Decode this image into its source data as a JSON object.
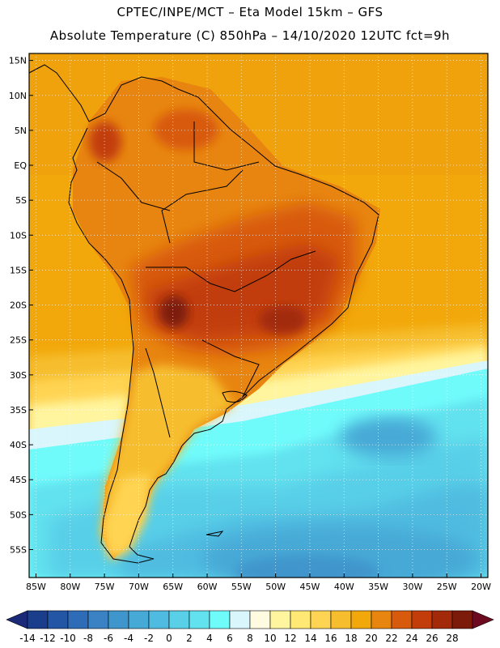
{
  "header": {
    "line1": "CPTEC/INPE/MCT –  Eta Model 15km – GFS",
    "line2": "Absolute Temperature (C) 850hPa – 14/10/2020 12UTC fct=9h"
  },
  "map": {
    "lat_labels": [
      "15N",
      "10N",
      "5N",
      "EQ",
      "5S",
      "10S",
      "15S",
      "20S",
      "25S",
      "30S",
      "35S",
      "40S",
      "45S",
      "50S",
      "55S"
    ],
    "lon_labels": [
      "85W",
      "80W",
      "75W",
      "70W",
      "65W",
      "60W",
      "55W",
      "50W",
      "45W",
      "40W",
      "35W",
      "30W",
      "25W",
      "20W"
    ],
    "lon_range": [
      -86,
      -19
    ],
    "lat_range": [
      -59,
      16
    ]
  },
  "colorbar": {
    "labels": [
      "-14",
      "-12",
      "-10",
      "-8",
      "-6",
      "-4",
      "-2",
      "0",
      "2",
      "4",
      "6",
      "8",
      "10",
      "12",
      "14",
      "16",
      "18",
      "20",
      "22",
      "24",
      "26",
      "28"
    ],
    "colors": [
      "#1a3d8c",
      "#2456a6",
      "#2e6cb8",
      "#3a82c4",
      "#3f96cc",
      "#46a9d6",
      "#4fbbe0",
      "#59cfe8",
      "#62e2ef",
      "#70fbfb",
      "#d8f6fb",
      "#fffbe0",
      "#fff59e",
      "#ffe873",
      "#ffd452",
      "#f6be2e",
      "#f2a80a",
      "#e88510",
      "#d85a0c",
      "#c23d0a",
      "#a22a08",
      "#7d1b0a"
    ],
    "under_color": "#1a2a78",
    "over_color": "#6e0a20"
  }
}
